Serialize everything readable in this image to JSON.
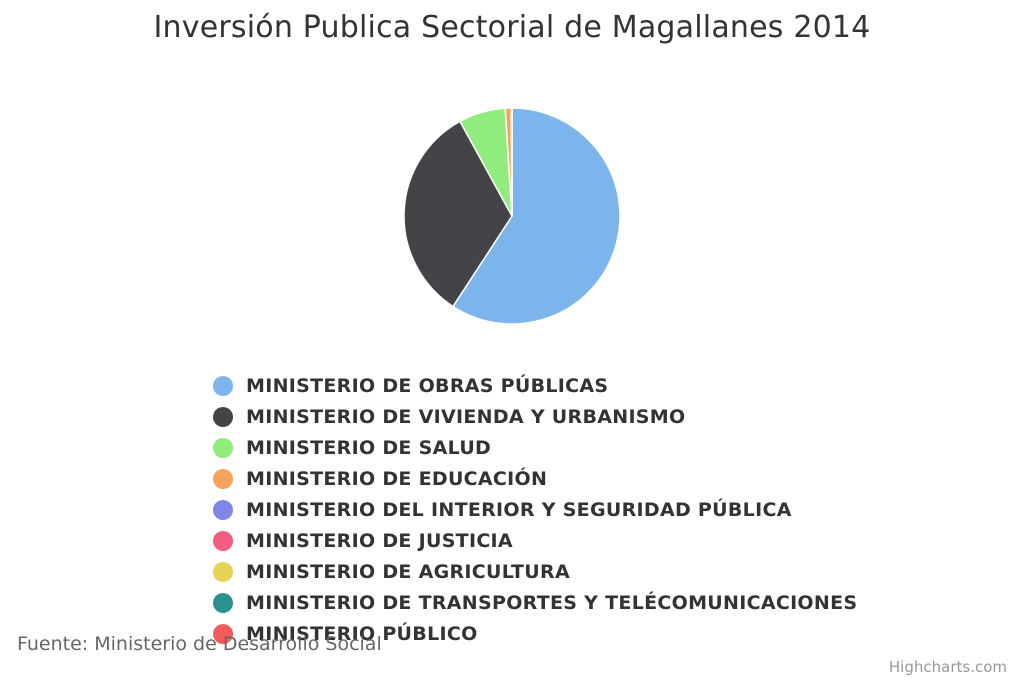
{
  "chart_data": {
    "type": "pie",
    "title": "Inversión Publica Sectorial de Magallanes 2014",
    "categories": [
      "MINISTERIO DE OBRAS PÚBLICAS",
      "MINISTERIO DE VIVIENDA Y URBANISMO",
      "MINISTERIO DE SALUD",
      "MINISTERIO DE EDUCACIÓN",
      "MINISTERIO DEL INTERIOR Y SEGURIDAD PÚBLICA",
      "MINISTERIO DE JUSTICIA",
      "MINISTERIO DE AGRICULTURA",
      "MINISTERIO DE TRANSPORTES Y TELÉCOMUNICACIONES",
      "MINISTERIO PÚBLICO"
    ],
    "values": [
      59.2,
      32.8,
      7.0,
      0.9,
      0.05,
      0.02,
      0.01,
      0.01,
      0.01
    ],
    "colors": [
      "#7cb5ec",
      "#434348",
      "#90ed7d",
      "#f7a35c",
      "#8085e9",
      "#f15c80",
      "#e4d354",
      "#2b908f",
      "#f45b5b"
    ],
    "legend_position": "bottom"
  },
  "source": "Fuente: Ministerio de Desarrollo Social",
  "credits": "Highcharts.com"
}
